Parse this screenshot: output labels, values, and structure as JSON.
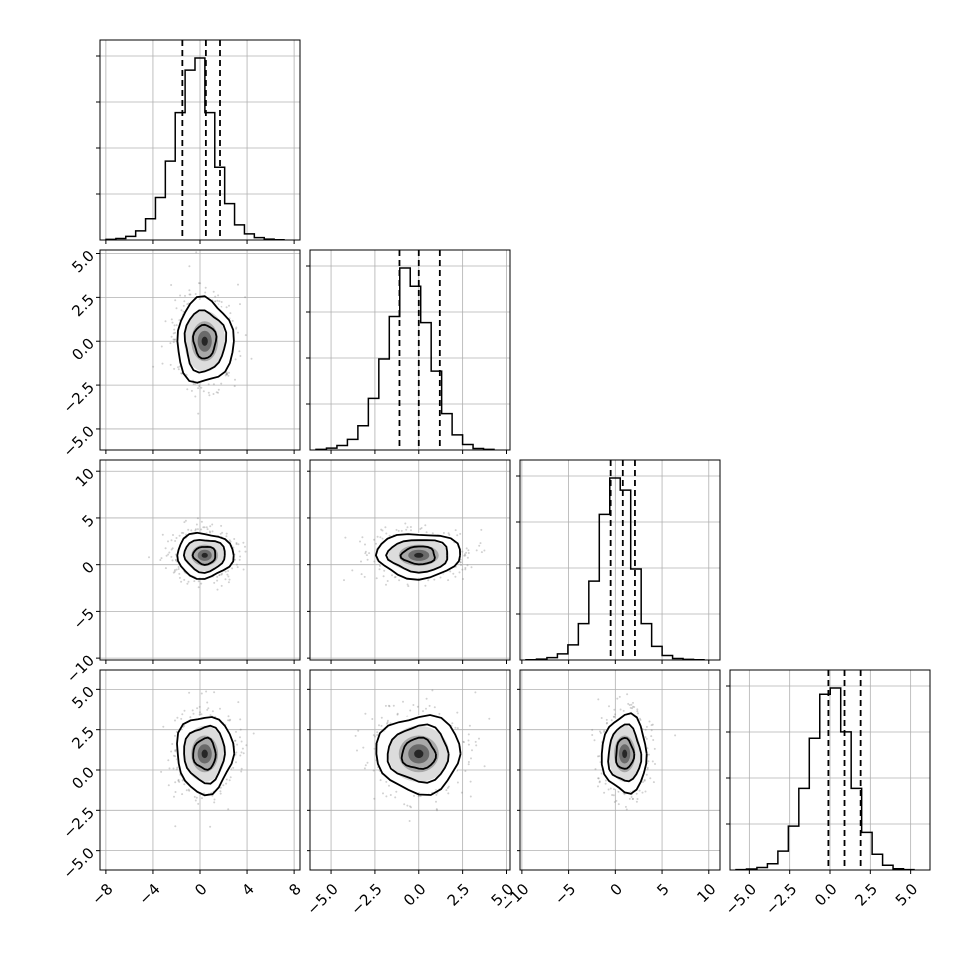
{
  "chart_data": {
    "type": "corner",
    "title": "",
    "n_params": 4,
    "params": [
      {
        "ticks": [
          -8,
          -4,
          0,
          4,
          8
        ],
        "tick_labels": [
          "−8",
          "−4",
          "0",
          "4",
          "8"
        ],
        "range": [
          -8.5,
          8.5
        ]
      },
      {
        "ticks": [
          -5,
          -2.5,
          0,
          2.5,
          5
        ],
        "tick_labels": [
          "−5.0",
          "−2.5",
          "0.0",
          "2.5",
          "5.0"
        ],
        "range": [
          -6.2,
          5.2
        ]
      },
      {
        "ticks": [
          -10,
          -5,
          0,
          5,
          10
        ],
        "tick_labels": [
          "−10",
          "−5",
          "0",
          "5",
          "10"
        ],
        "range": [
          -10.2,
          11.2
        ]
      },
      {
        "ticks": [
          -5,
          -2.5,
          0,
          2.5,
          5
        ],
        "tick_labels": [
          "−5.0",
          "−2.5",
          "0.0",
          "2.5",
          "5.0"
        ],
        "range": [
          -6.2,
          6.2
        ]
      }
    ],
    "hist_counts": [
      [
        2,
        5,
        12,
        30,
        70,
        140,
        260,
        420,
        560,
        600,
        420,
        240,
        120,
        50,
        20,
        8,
        3,
        1
      ],
      [
        2,
        6,
        15,
        35,
        80,
        170,
        300,
        440,
        600,
        540,
        420,
        260,
        120,
        50,
        18,
        5,
        2
      ],
      [
        1,
        3,
        8,
        20,
        50,
        120,
        260,
        480,
        600,
        560,
        300,
        120,
        45,
        15,
        5,
        2,
        1
      ],
      [
        1,
        3,
        8,
        20,
        60,
        140,
        260,
        420,
        560,
        580,
        440,
        260,
        120,
        50,
        15,
        4,
        1
      ]
    ],
    "quantiles": [
      [
        -1.5,
        0.5,
        1.7
      ],
      [
        -1.1,
        0.0,
        1.2
      ],
      [
        -0.5,
        0.8,
        2.1
      ],
      [
        -0.1,
        0.9,
        1.9
      ]
    ],
    "centers": [
      0.4,
      0.0,
      1.0,
      1.0
    ],
    "sigmas": [
      1.2,
      1.2,
      1.2,
      1.2
    ],
    "grid": true
  }
}
